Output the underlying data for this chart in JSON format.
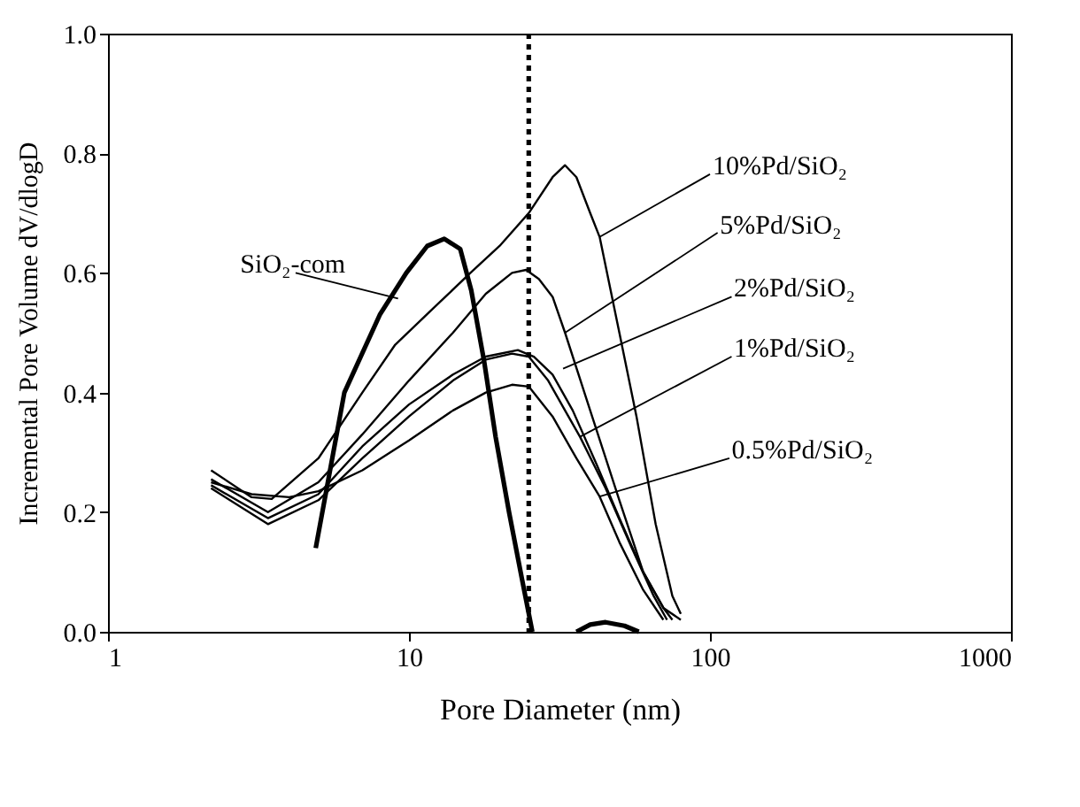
{
  "chart_data": {
    "type": "line",
    "xlabel": "Pore Diameter (nm)",
    "ylabel": "Incremental Pore Volume dV/dlogD",
    "log": "x",
    "xlim": [
      1,
      1000
    ],
    "xticks": [
      1,
      10,
      100,
      1000
    ],
    "ylim": [
      0,
      1
    ],
    "yticks": [
      {
        "value": 0,
        "label": "0.0"
      },
      {
        "value": 0.2,
        "label": "0.2"
      },
      {
        "value": 0.4,
        "label": "0.4"
      },
      {
        "value": 0.6,
        "label": "0.6"
      },
      {
        "value": 0.8,
        "label": "0.8"
      },
      {
        "value": 1,
        "label": "1.0"
      }
    ],
    "grid": false,
    "legend": false,
    "marker": "none",
    "line_style": "solid",
    "ref_lines": [
      {
        "axis": "x",
        "value": 25,
        "line_style": "dotted",
        "color": "#000000"
      }
    ],
    "series": [
      {
        "name": "SiO₂-com",
        "color": "#000000",
        "x": [
          4.9,
          6.1,
          8,
          9.8,
          11.5,
          13.1,
          14.8,
          16.1,
          17.8,
          19.4,
          21.5,
          23.7,
          25.7,
          30,
          36,
          40,
          45,
          52,
          58
        ],
        "values": [
          0.14,
          0.4,
          0.53,
          0.6,
          0.645,
          0.657,
          0.64,
          0.571,
          0.45,
          0.326,
          0.2,
          0.09,
          0,
          null,
          0,
          0.012,
          0.016,
          0.01,
          0
        ]
      },
      {
        "name": "10%Pd/SiO₂",
        "color": "#000000",
        "x": [
          2.2,
          3,
          3.5,
          5,
          7,
          9,
          12,
          16,
          20,
          25,
          30,
          33,
          36,
          40,
          43,
          50,
          57,
          66,
          75,
          80
        ],
        "values": [
          0.27,
          0.225,
          0.222,
          0.29,
          0.4,
          0.48,
          0.54,
          0.6,
          0.645,
          0.7,
          0.76,
          0.78,
          0.76,
          0.7,
          0.66,
          0.5,
          0.36,
          0.18,
          0.06,
          0.03
        ]
      },
      {
        "name": "5%Pd/SiO₂",
        "color": "#000000",
        "x": [
          2.2,
          3.4,
          5,
          7,
          10,
          14,
          18,
          22,
          24.5,
          27,
          30,
          33,
          40,
          50,
          60,
          70,
          80
        ],
        "values": [
          0.255,
          0.2,
          0.25,
          0.33,
          0.42,
          0.5,
          0.565,
          0.6,
          0.605,
          0.59,
          0.56,
          0.5,
          0.37,
          0.22,
          0.1,
          0.04,
          0.02
        ]
      },
      {
        "name": "2%Pd/SiO₂",
        "color": "#000000",
        "x": [
          2.2,
          3.4,
          5,
          7,
          10,
          14,
          18,
          23,
          26,
          30,
          35,
          42,
          50,
          60,
          70,
          75
        ],
        "values": [
          0.245,
          0.19,
          0.23,
          0.31,
          0.38,
          0.43,
          0.46,
          0.471,
          0.46,
          0.43,
          0.37,
          0.28,
          0.19,
          0.1,
          0.04,
          0.02
        ]
      },
      {
        "name": "1%Pd/SiO₂",
        "color": "#000000",
        "x": [
          2.2,
          3.4,
          5,
          7,
          10,
          14,
          18,
          22,
          25,
          29,
          33,
          37,
          45,
          55,
          65,
          72
        ],
        "values": [
          0.24,
          0.18,
          0.22,
          0.29,
          0.36,
          0.42,
          0.455,
          0.465,
          0.46,
          0.42,
          0.37,
          0.326,
          0.24,
          0.14,
          0.06,
          0.02
        ]
      },
      {
        "name": "0.5%Pd/SiO₂",
        "color": "#000000",
        "x": [
          2.2,
          3,
          4,
          5,
          7,
          10,
          14,
          18,
          22,
          25,
          30,
          36,
          43,
          50,
          60,
          70
        ],
        "values": [
          0.25,
          0.23,
          0.225,
          0.235,
          0.27,
          0.32,
          0.37,
          0.4,
          0.413,
          0.41,
          0.36,
          0.29,
          0.226,
          0.15,
          0.07,
          0.02
        ]
      }
    ]
  }
}
